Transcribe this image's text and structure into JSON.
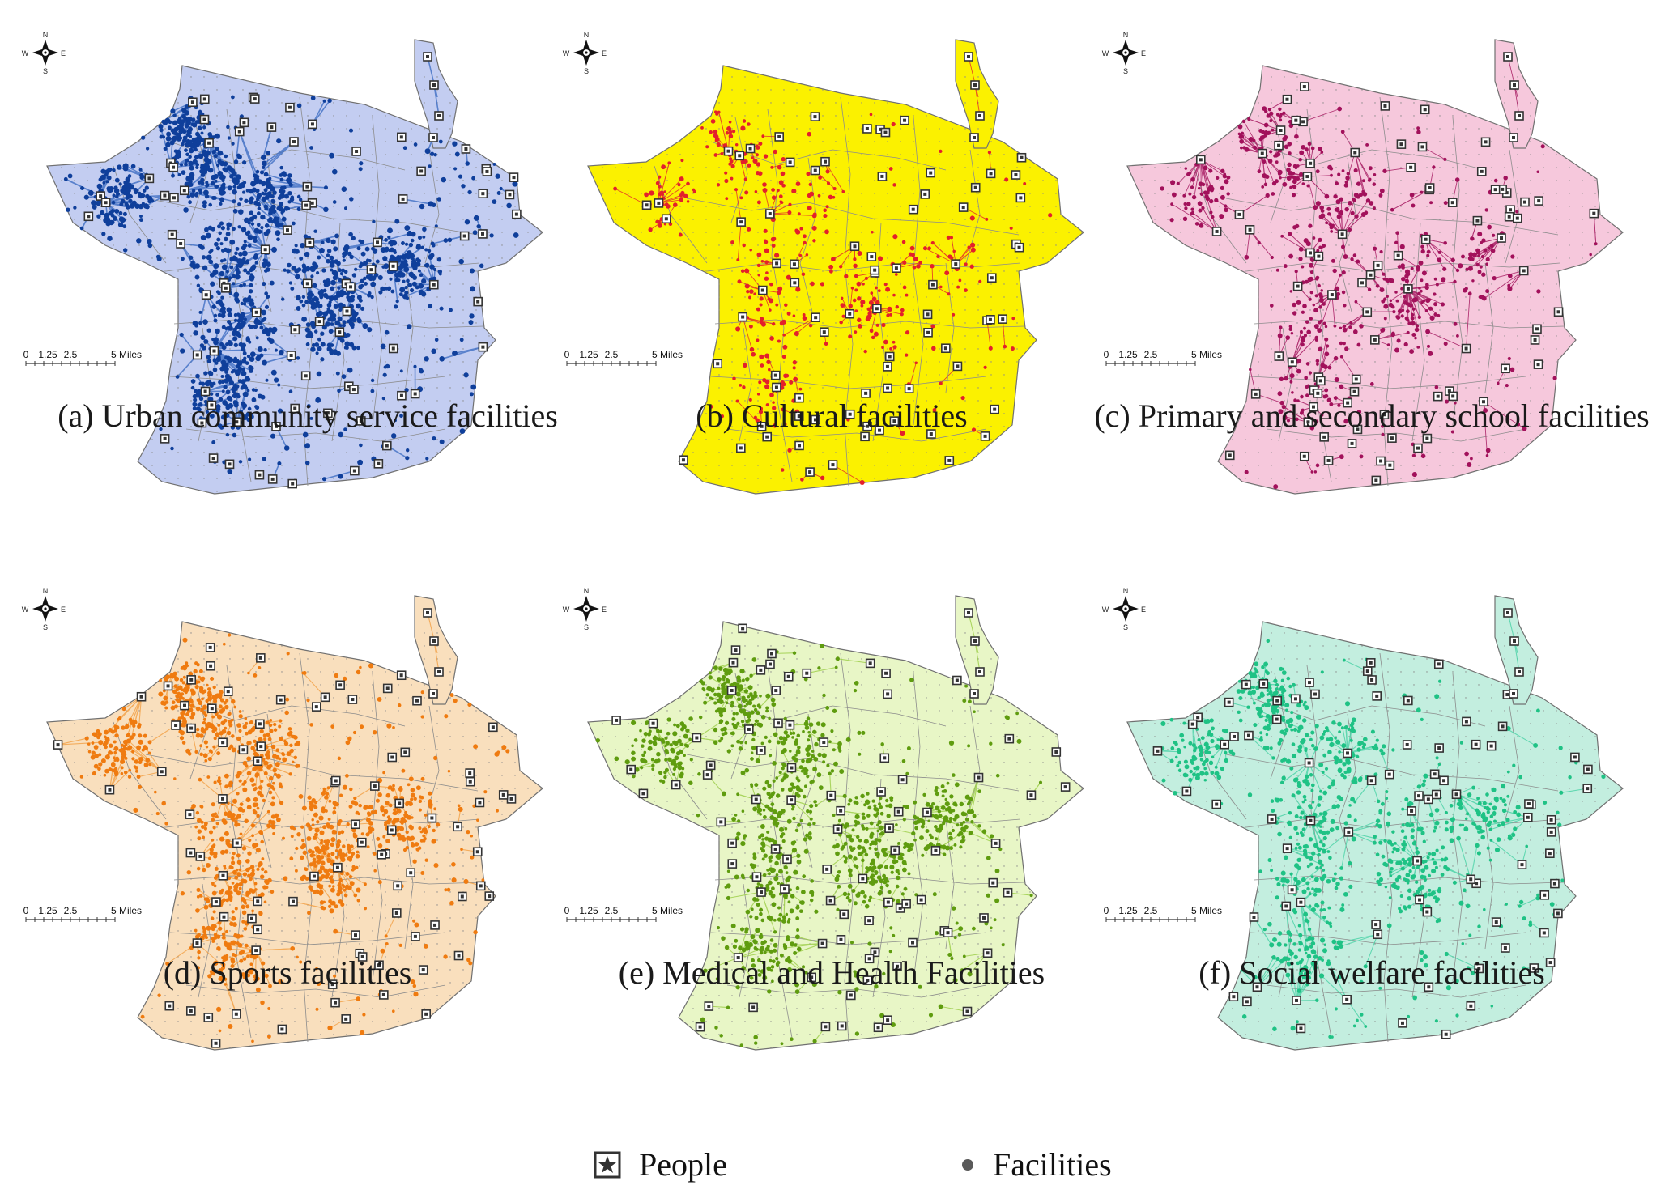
{
  "figure": {
    "panels": [
      {
        "id": "a",
        "caption": "(a) Urban community service facilities",
        "fill": "#c3cdf1",
        "dot": "#0f3f9b",
        "line": "#3f6fc4",
        "people": 86,
        "facilities": 1500,
        "links": 420,
        "weight": "heavy"
      },
      {
        "id": "b",
        "caption": "(b) Cultural facilities",
        "fill": "#fbf100",
        "dot": "#e3202b",
        "line": "#e3202b",
        "people": 80,
        "facilities": 420,
        "links": 140,
        "weight": "light"
      },
      {
        "id": "c",
        "caption": "(c) Primary and secondary school facilities",
        "fill": "#f6c8dc",
        "dot": "#a2115b",
        "line": "#a2115b",
        "people": 84,
        "facilities": 620,
        "links": 330,
        "weight": "light"
      },
      {
        "id": "d",
        "caption": "(d) Sports facilities",
        "fill": "#f9dfbd",
        "dot": "#ef7b10",
        "line": "#f2a045",
        "people": 88,
        "facilities": 1300,
        "links": 260,
        "weight": "medium"
      },
      {
        "id": "e",
        "caption": "(e) Medical and Health Facilities",
        "fill": "#e8f6c6",
        "dot": "#5f9c0f",
        "line": "#9bcd46",
        "people": 88,
        "facilities": 1100,
        "links": 220,
        "weight": "medium"
      },
      {
        "id": "f",
        "caption": "(f) Social welfare facilities",
        "fill": "#c3eedf",
        "dot": "#1fc285",
        "line": "#49d2a6",
        "people": 84,
        "facilities": 950,
        "links": 240,
        "weight": "medium"
      }
    ],
    "compass": {
      "n": "N",
      "s": "S",
      "e": "E",
      "w": "W"
    },
    "scale_bar": {
      "ticks": [
        "0",
        "1.25",
        "2.5"
      ],
      "end": "5 Miles"
    }
  },
  "legend": {
    "people": "People",
    "facilities": "Facilities"
  },
  "colors": {
    "boundary": "#707070",
    "text": "#111111",
    "legend_dot": "#5a5a5a"
  }
}
